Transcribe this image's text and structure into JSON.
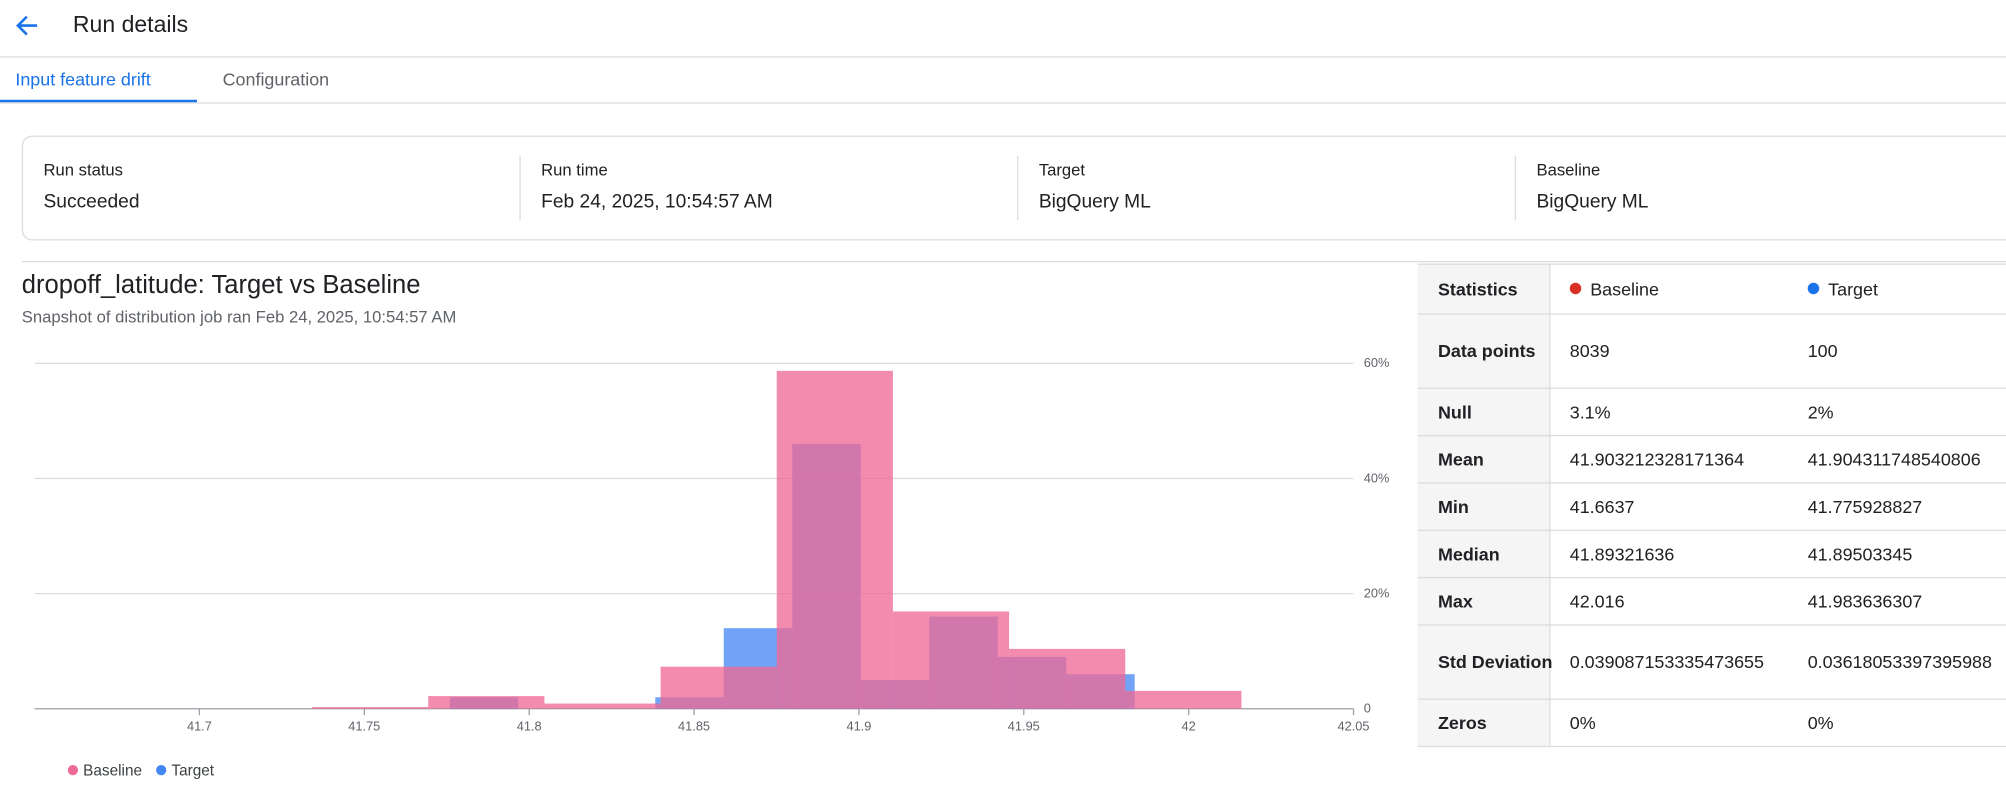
{
  "header": {
    "title": "Run details"
  },
  "tabs": [
    "Input feature drift",
    "Configuration"
  ],
  "summary": [
    {
      "label": "Run status",
      "value": "Succeeded"
    },
    {
      "label": "Run time",
      "value": "Feb 24, 2025, 10:54:57 AM"
    },
    {
      "label": "Target",
      "value": "BigQuery ML"
    },
    {
      "label": "Baseline",
      "value": "BigQuery ML"
    }
  ],
  "chart_data": {
    "type": "histogram",
    "title": "dropoff_latitude: Target vs Baseline",
    "subtitle": "Snapshot of distribution job ran Feb 24, 2025, 10:54:57 AM",
    "series": [
      {
        "name": "Baseline",
        "color": "#ee6a97",
        "bins": [
          41.6637,
          41.69893,
          41.73416,
          41.76939,
          41.80462,
          41.83985,
          41.87508,
          41.91031,
          41.94554,
          41.98077,
          42.016
        ],
        "values": [
          0,
          0,
          0.3,
          2.2,
          0.9,
          7.3,
          58.7,
          16.9,
          10.4,
          3.1
        ]
      },
      {
        "name": "Target",
        "color": "#4285f4",
        "bins": [
          41.775929,
          41.7967,
          41.81747,
          41.83824,
          41.85901,
          41.87978,
          41.90055,
          41.92133,
          41.9421,
          41.96287,
          41.983636
        ],
        "values": [
          2,
          0,
          0,
          2,
          14,
          46,
          5,
          16,
          9,
          6
        ]
      }
    ],
    "xlim": [
      41.65,
      42.05
    ],
    "xticks": [
      41.7,
      41.75,
      41.8,
      41.85,
      41.9,
      41.95,
      42,
      42.05
    ],
    "ylim": [
      0,
      60
    ],
    "yticks": [
      {
        "value": 0,
        "label": "0"
      },
      {
        "value": 20,
        "label": "20%"
      },
      {
        "value": 40,
        "label": "40%"
      },
      {
        "value": 60,
        "label": "60%"
      }
    ],
    "grid": true,
    "legend": "bottom-left"
  },
  "statistics": {
    "header": [
      "Statistics",
      "Baseline",
      "Target"
    ],
    "rows": [
      [
        "Data points",
        "8039",
        "100"
      ],
      [
        "Null",
        "3.1%",
        "2%"
      ],
      [
        "Mean",
        "41.903212328171364",
        "41.904311748540806"
      ],
      [
        "Min",
        "41.6637",
        "41.775928827"
      ],
      [
        "Median",
        "41.89321636",
        "41.89503345"
      ],
      [
        "Max",
        "42.016",
        "41.983636307"
      ],
      [
        "Std Deviation",
        "0.039087153335473655",
        "0.03618053397395988"
      ],
      [
        "Zeros",
        "0%",
        "0%"
      ]
    ]
  }
}
